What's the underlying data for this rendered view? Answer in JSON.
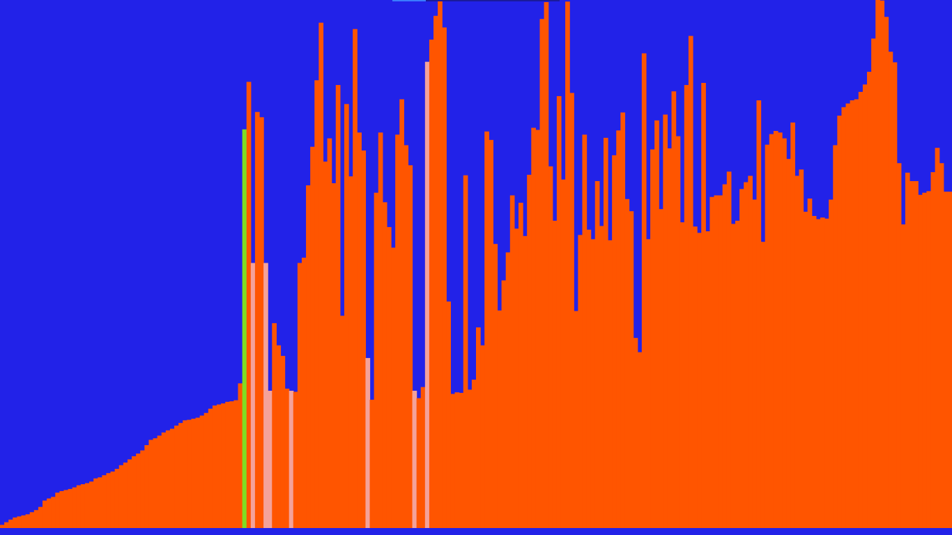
{
  "visualizer": {
    "colors": {
      "background": "#2222e8",
      "bar": "#ff5500",
      "sorted_bar": "#ff5500",
      "compare_bar": "#f4a29a",
      "pivot_bar": "#7fdd22"
    },
    "pivot_index": 57,
    "compare_indices": [
      59,
      62,
      63,
      68,
      86,
      97,
      100
    ],
    "progress_fraction": 0.2
  },
  "chart_data": {
    "type": "bar",
    "ylim": [
      0,
      1000
    ],
    "values": [
      6,
      11,
      16,
      20,
      22,
      24,
      26,
      30,
      34,
      40,
      52,
      56,
      59,
      67,
      70,
      72,
      74,
      77,
      81,
      83,
      85,
      88,
      94,
      96,
      100,
      104,
      107,
      112,
      119,
      124,
      130,
      136,
      141,
      147,
      157,
      167,
      170,
      175,
      181,
      185,
      188,
      194,
      199,
      204,
      205,
      207,
      209,
      213,
      218,
      226,
      232,
      234,
      236,
      239,
      240,
      242,
      274,
      755,
      845,
      502,
      788,
      778,
      502,
      260,
      388,
      346,
      326,
      264,
      260,
      258,
      502,
      512,
      649,
      722,
      848,
      957,
      694,
      738,
      653,
      839,
      402,
      803,
      666,
      945,
      749,
      715,
      322,
      243,
      635,
      749,
      617,
      570,
      531,
      745,
      812,
      725,
      687,
      260,
      246,
      267,
      883,
      925,
      970,
      998,
      948,
      429,
      254,
      257,
      256,
      668,
      262,
      281,
      380,
      346,
      751,
      735,
      538,
      412,
      469,
      522,
      630,
      567,
      616,
      553,
      669,
      758,
      754,
      964,
      996,
      685,
      582,
      818,
      660,
      997,
      824,
      411,
      555,
      745,
      565,
      547,
      657,
      572,
      739,
      545,
      706,
      753,
      787,
      623,
      600,
      360,
      333,
      899,
      547,
      717,
      772,
      604,
      783,
      719,
      827,
      742,
      579,
      839,
      932,
      571,
      559,
      843,
      562,
      627,
      630,
      630,
      651,
      675,
      576,
      582,
      642,
      655,
      667,
      622,
      810,
      542,
      726,
      746,
      752,
      749,
      738,
      699,
      768,
      667,
      679,
      599,
      624,
      591,
      585,
      588,
      586,
      622,
      725,
      781,
      797,
      804,
      810,
      812,
      826,
      840,
      864,
      927,
      1003,
      999,
      968,
      902,
      882,
      691,
      575,
      673,
      657,
      657,
      631,
      635,
      638,
      674,
      720,
      691,
      637,
      637
    ]
  }
}
